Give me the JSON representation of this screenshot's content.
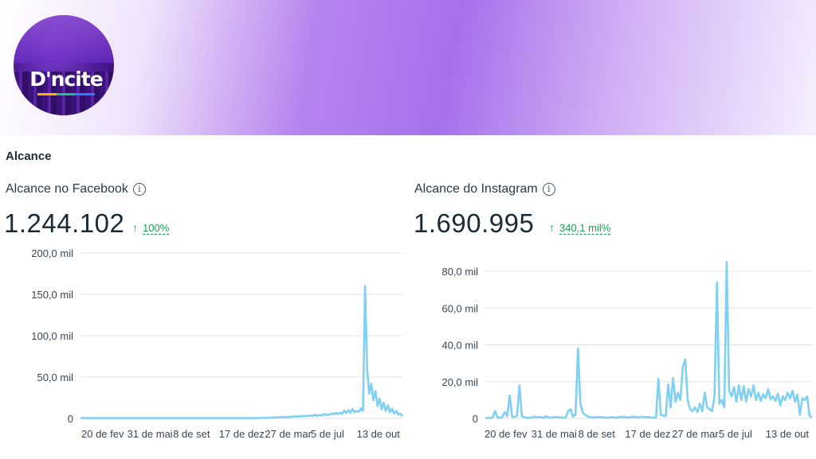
{
  "branding": {
    "logo_text": "D'ncite"
  },
  "section": {
    "title": "Alcance"
  },
  "panels": [
    {
      "title": "Alcance no Facebook",
      "total": "1.244.102",
      "change": "100%",
      "chart_data": {
        "type": "line",
        "x_tick_labels": [
          "20 de fev",
          "31 de mai",
          "8 de set",
          "17 de dez",
          "27 de mar",
          "5 de jul",
          "13 de out"
        ],
        "y_tick_labels": [
          "0",
          "50,0 mil",
          "100,0 mil",
          "150,0 mil",
          "200,0 mil"
        ],
        "ylim": [
          0,
          200000
        ],
        "grid": true,
        "color": "#7fd0f2",
        "series": [
          {
            "values": [
              400,
              400,
              400,
              400,
              400,
              400,
              400,
              400,
              400,
              400,
              400,
              400,
              400,
              400,
              400,
              400,
              400,
              400,
              400,
              400,
              400,
              400,
              400,
              400,
              400,
              400,
              400,
              400,
              400,
              400,
              400,
              400,
              400,
              400,
              400,
              400,
              400,
              400,
              400,
              400,
              400,
              400,
              400,
              400,
              400,
              400,
              400,
              400,
              400,
              400,
              400,
              400,
              400,
              400,
              400,
              400,
              400,
              400,
              400,
              400,
              400,
              400,
              400,
              400,
              400,
              400,
              400,
              400,
              400,
              400,
              400,
              400,
              400,
              400,
              400,
              400,
              400,
              400,
              400,
              400,
              400,
              400,
              400,
              400,
              400,
              500,
              500,
              600,
              800,
              700,
              900,
              1000,
              900,
              1200,
              1400,
              1100,
              1500,
              1800,
              1300,
              1600,
              2000,
              1700,
              2200,
              2500,
              2000,
              2800,
              2400,
              3100,
              2600,
              3300,
              2900,
              3500,
              3000,
              4600,
              3200,
              4000,
              3600,
              5200,
              4100,
              4800,
              4400,
              6200,
              5000,
              6800,
              5400,
              7200,
              5800,
              9500,
              6300,
              10200,
              6800,
              11500,
              7400,
              9000,
              8200,
              12500,
              9000,
              160000,
              60000,
              30000,
              42000,
              22000,
              33000,
              15000,
              24000,
              11000,
              19000,
              9000,
              16000,
              7500,
              12000,
              6000,
              9000,
              4500,
              6000,
              2500
            ]
          }
        ]
      }
    },
    {
      "title": "Alcance do Instagram",
      "total": "1.690.995",
      "change": "340,1 mil%",
      "chart_data": {
        "type": "line",
        "x_tick_labels": [
          "20 de fev",
          "31 de mai",
          "8 de set",
          "17 de dez",
          "27 de mar",
          "5 de jul",
          "13 de out"
        ],
        "y_tick_labels": [
          "0",
          "20,0 mil",
          "40,0 mil",
          "60,0 mil",
          "80,0 mil"
        ],
        "ylim": [
          0,
          80000
        ],
        "grid": true,
        "color": "#7fd0f2",
        "series": [
          {
            "values": [
              200,
              200,
              300,
              500,
              4000,
              500,
              400,
              800,
              3500,
              1200,
              12500,
              900,
              800,
              1500,
              18000,
              1200,
              600,
              400,
              300,
              500,
              1000,
              600,
              800,
              500,
              400,
              1200,
              500,
              400,
              600,
              800,
              700,
              500,
              400,
              500,
              4000,
              5000,
              1000,
              2000,
              38000,
              8000,
              3000,
              2000,
              1000,
              800,
              600,
              500,
              700,
              800,
              600,
              500,
              400,
              600,
              700,
              500,
              400,
              800,
              900,
              700,
              600,
              500,
              1000,
              800,
              600,
              700,
              900,
              700,
              800,
              600,
              500,
              400,
              600,
              21500,
              2000,
              1500,
              1200,
              18500,
              6000,
              22000,
              9000,
              14000,
              10000,
              28000,
              32000,
              10000,
              5000,
              4000,
              6000,
              3500,
              8000,
              4000,
              14000,
              6000,
              5000,
              4000,
              12000,
              74000,
              8000,
              10000,
              6000,
              85000,
              15000,
              12000,
              17000,
              9000,
              18000,
              10000,
              17500,
              9000,
              16000,
              12000,
              18000,
              10000,
              14000,
              9500,
              13000,
              11000,
              16000,
              10500,
              12000,
              9500,
              13500,
              7000,
              12000,
              10000,
              14000,
              11000,
              15000,
              9000,
              13000,
              2000,
              11000,
              10000,
              12000,
              1500,
              500
            ]
          }
        ]
      }
    }
  ]
}
